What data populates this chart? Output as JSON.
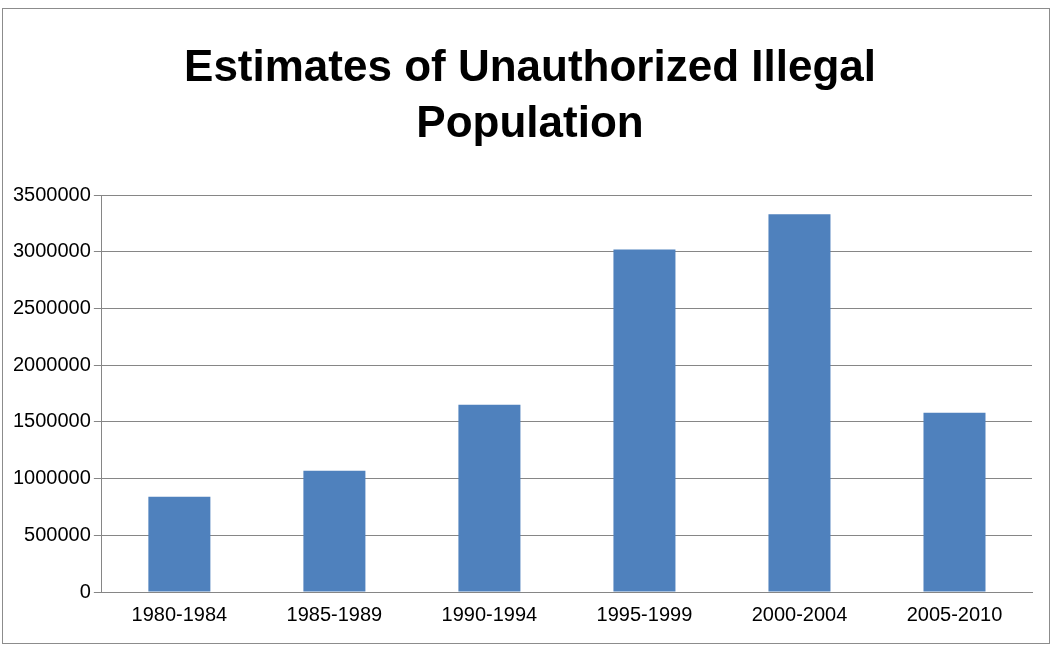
{
  "chart_data": {
    "type": "bar",
    "title": "Estimates of Unauthorized Illegal Population",
    "categories": [
      "1980-1984",
      "1985-1989",
      "1990-1994",
      "1995-1999",
      "2000-2004",
      "2005-2010"
    ],
    "values": [
      840000,
      1070000,
      1650000,
      3020000,
      3330000,
      1580000
    ],
    "color": "#4f81bd",
    "ylim": [
      0,
      3500000
    ],
    "yticks": [
      0,
      500000,
      1000000,
      1500000,
      2000000,
      2500000,
      3000000,
      3500000
    ],
    "grid": "y",
    "legend": false
  }
}
